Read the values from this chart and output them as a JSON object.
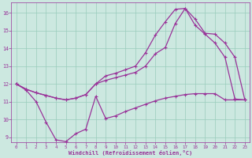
{
  "background_color": "#cce8e0",
  "line_color": "#993399",
  "grid_color": "#99ccbb",
  "xlabel": "Windchill (Refroidissement éolien,°C)",
  "xlim": [
    -0.5,
    23.5
  ],
  "ylim": [
    8.7,
    16.6
  ],
  "xticks": [
    0,
    1,
    2,
    3,
    4,
    5,
    6,
    7,
    8,
    9,
    10,
    11,
    12,
    13,
    14,
    15,
    16,
    17,
    18,
    19,
    20,
    21,
    22,
    23
  ],
  "yticks": [
    9,
    10,
    11,
    12,
    13,
    14,
    15,
    16
  ],
  "curve_top_x": [
    0,
    1,
    2,
    3,
    4,
    5,
    6,
    7,
    8,
    9,
    10,
    11,
    12,
    13,
    14,
    15,
    16,
    17,
    18,
    19,
    20,
    21,
    22,
    23
  ],
  "curve_top_y": [
    12.0,
    11.7,
    11.5,
    11.35,
    11.2,
    11.1,
    11.2,
    11.4,
    12.0,
    12.45,
    12.6,
    12.8,
    13.0,
    13.75,
    14.75,
    15.5,
    16.2,
    16.25,
    15.65,
    14.85,
    14.8,
    14.3,
    13.5,
    11.1
  ],
  "curve_mid_x": [
    0,
    1,
    2,
    3,
    4,
    5,
    6,
    7,
    8,
    9,
    10,
    11,
    12,
    13,
    14,
    15,
    16,
    17,
    18,
    19,
    20,
    21,
    22,
    23
  ],
  "curve_mid_y": [
    12.0,
    11.7,
    11.5,
    11.35,
    11.2,
    11.1,
    11.2,
    11.4,
    12.0,
    12.2,
    12.35,
    12.5,
    12.65,
    13.0,
    13.7,
    14.05,
    15.4,
    16.25,
    15.3,
    14.8,
    14.3,
    13.5,
    11.15,
    11.1
  ],
  "curve_bot_x": [
    0,
    1,
    2,
    3,
    4,
    5,
    6,
    7,
    8,
    9,
    10,
    11,
    12,
    13,
    14,
    15,
    16,
    17,
    18,
    19,
    20,
    21,
    22,
    23
  ],
  "curve_bot_y": [
    12.0,
    11.65,
    11.0,
    9.85,
    8.85,
    8.75,
    9.2,
    9.45,
    11.3,
    10.05,
    10.2,
    10.45,
    10.65,
    10.85,
    11.05,
    11.2,
    11.3,
    11.4,
    11.45,
    11.45,
    11.45,
    11.1,
    11.1,
    11.1
  ]
}
